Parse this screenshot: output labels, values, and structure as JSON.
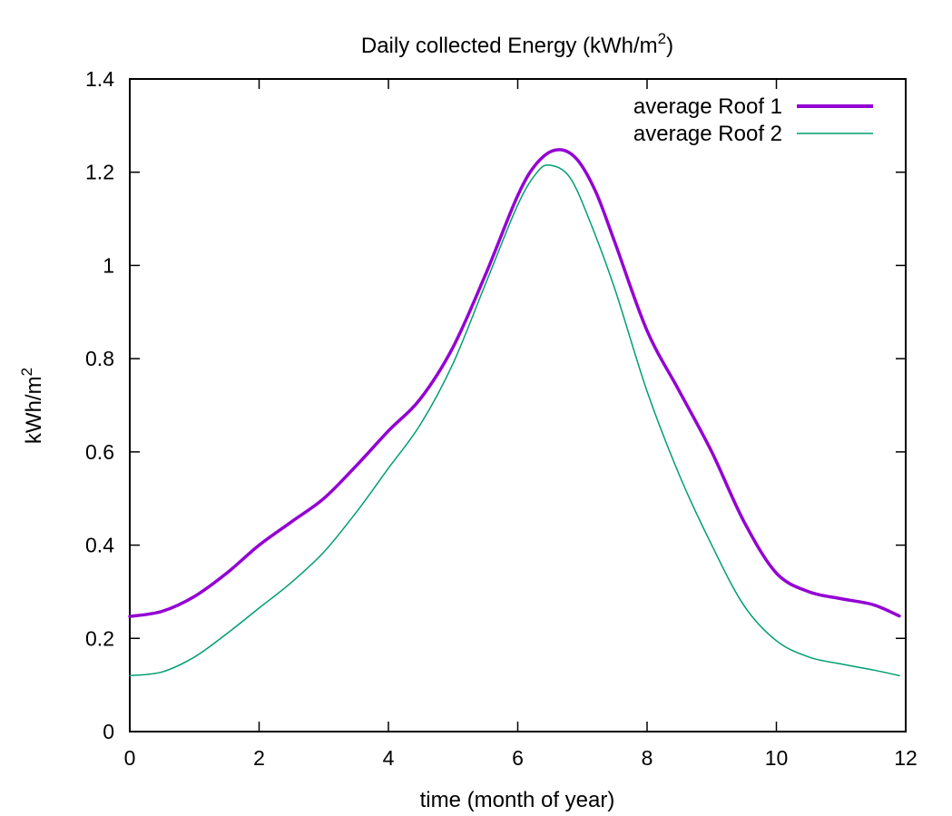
{
  "chart_data": {
    "type": "line",
    "title": "Daily collected Energy (kWh/m",
    "title_sup": "2",
    "title_end": ")",
    "xlabel": "time (month of year)",
    "ylabel": "kWh/m",
    "ylabel_sup": "2",
    "xlim": [
      0,
      12
    ],
    "ylim": [
      0,
      1.4
    ],
    "xticks": [
      0,
      2,
      4,
      6,
      8,
      10,
      12
    ],
    "xtick_labels": [
      "0",
      "2",
      "4",
      "6",
      "8",
      "10",
      "12"
    ],
    "yticks": [
      0,
      0.2,
      0.4,
      0.6,
      0.8,
      1.0,
      1.2,
      1.4
    ],
    "ytick_labels": [
      "0",
      "0.2",
      "0.4",
      "0.6",
      "0.8",
      "1",
      "1.2",
      "1.4"
    ],
    "grid": false,
    "legend_position": "top-right",
    "series": [
      {
        "name": "average Roof 1",
        "color": "#9400d3",
        "x": [
          0,
          0.5,
          1,
          1.5,
          2,
          2.5,
          3,
          3.5,
          4,
          4.5,
          5,
          5.5,
          6,
          6.3,
          6.6,
          6.9,
          7.2,
          7.5,
          8,
          8.5,
          9,
          9.5,
          10,
          10.5,
          11,
          11.5,
          11.9
        ],
        "y": [
          0.247,
          0.258,
          0.29,
          0.34,
          0.4,
          0.45,
          0.5,
          0.57,
          0.645,
          0.715,
          0.825,
          0.98,
          1.15,
          1.22,
          1.248,
          1.23,
          1.16,
          1.05,
          0.86,
          0.73,
          0.6,
          0.45,
          0.34,
          0.3,
          0.285,
          0.272,
          0.248
        ]
      },
      {
        "name": "average Roof 2",
        "color": "#009e73",
        "x": [
          0,
          0.5,
          1,
          1.5,
          2,
          2.5,
          3,
          3.5,
          4,
          4.5,
          5,
          5.5,
          6,
          6.3,
          6.5,
          6.8,
          7.1,
          7.5,
          8,
          8.5,
          9,
          9.5,
          10,
          10.5,
          11,
          11.5,
          11.9
        ],
        "y": [
          0.12,
          0.128,
          0.16,
          0.21,
          0.265,
          0.32,
          0.385,
          0.47,
          0.565,
          0.66,
          0.79,
          0.96,
          1.13,
          1.2,
          1.215,
          1.19,
          1.1,
          0.95,
          0.73,
          0.55,
          0.4,
          0.27,
          0.195,
          0.16,
          0.145,
          0.132,
          0.12
        ]
      }
    ]
  }
}
